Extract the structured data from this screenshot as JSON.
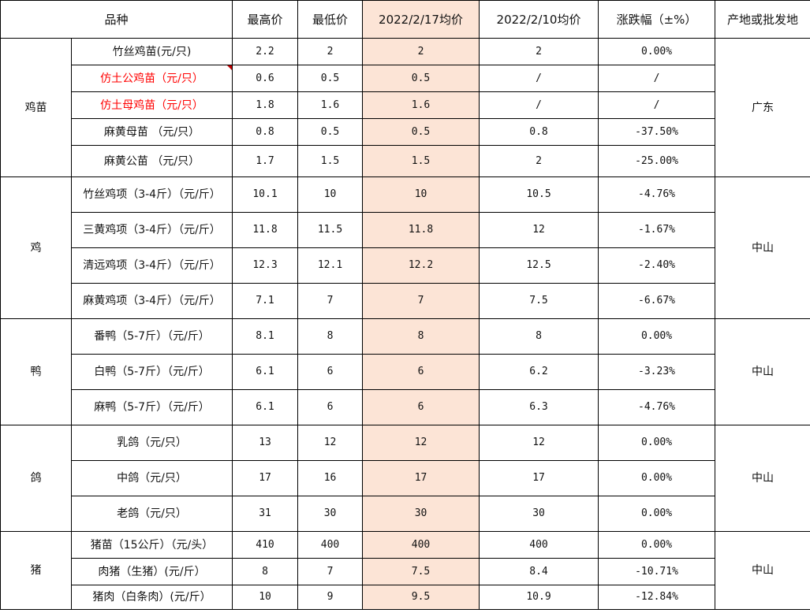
{
  "headers": {
    "variety": "品种",
    "high": "最高价",
    "low": "最低价",
    "avg_current": "2022/2/17均价",
    "avg_prev": "2022/2/10均价",
    "change": "涨跌幅（±%）",
    "origin": "产地或批发地"
  },
  "colors": {
    "highlight": "#fce4d6",
    "red_text": "#ff0000",
    "comment_marker": "#c00000"
  },
  "groups": [
    {
      "category": "鸡苗",
      "origin": "广东",
      "rows": [
        {
          "name": "竹丝鸡苗(元/只)",
          "high": "2.2",
          "low": "2",
          "avg": "2",
          "prev": "2",
          "change": "0.00%"
        },
        {
          "name": "仿土公鸡苗（元/只）",
          "high": "0.6",
          "low": "0.5",
          "avg": "0.5",
          "prev": "/",
          "change": "/",
          "red": true,
          "comment": true
        },
        {
          "name": "仿土母鸡苗（元/只）",
          "high": "1.8",
          "low": "1.6",
          "avg": "1.6",
          "prev": "/",
          "change": "/",
          "red": true
        },
        {
          "name": "麻黄母苗 （元/只）",
          "high": "0.8",
          "low": "0.5",
          "avg": "0.5",
          "prev": "0.8",
          "change": "-37.50%"
        },
        {
          "name": "麻黄公苗 （元/只）",
          "high": "1.7",
          "low": "1.5",
          "avg": "1.5",
          "prev": "2",
          "change": "-25.00%"
        }
      ]
    },
    {
      "category": "鸡",
      "origin": "中山",
      "rows": [
        {
          "name": "竹丝鸡项（3-4斤）（元/斤）",
          "high": "10.1",
          "low": "10",
          "avg": "10",
          "prev": "10.5",
          "change": "-4.76%"
        },
        {
          "name": "三黄鸡项（3-4斤）（元/斤）",
          "high": "11.8",
          "low": "11.5",
          "avg": "11.8",
          "prev": "12",
          "change": "-1.67%"
        },
        {
          "name": "清远鸡项（3-4斤）（元/斤）",
          "high": "12.3",
          "low": "12.1",
          "avg": "12.2",
          "prev": "12.5",
          "change": "-2.40%"
        },
        {
          "name": "麻黄鸡项（3-4斤）（元/斤）",
          "high": "7.1",
          "low": "7",
          "avg": "7",
          "prev": "7.5",
          "change": "-6.67%"
        }
      ]
    },
    {
      "category": "鸭",
      "origin": "中山",
      "rows": [
        {
          "name": "番鸭（5-7斤）（元/斤）",
          "high": "8.1",
          "low": "8",
          "avg": "8",
          "prev": "8",
          "change": "0.00%"
        },
        {
          "name": "白鸭（5-7斤）（元/斤）",
          "high": "6.1",
          "low": "6",
          "avg": "6",
          "prev": "6.2",
          "change": "-3.23%"
        },
        {
          "name": "麻鸭（5-7斤）（元/斤）",
          "high": "6.1",
          "low": "6",
          "avg": "6",
          "prev": "6.3",
          "change": "-4.76%"
        }
      ]
    },
    {
      "category": "鸽",
      "origin": "中山",
      "rows": [
        {
          "name": "乳鸽（元/只）",
          "high": "13",
          "low": "12",
          "avg": "12",
          "prev": "12",
          "change": "0.00%"
        },
        {
          "name": "中鸽（元/只）",
          "high": "17",
          "low": "16",
          "avg": "17",
          "prev": "17",
          "change": "0.00%"
        },
        {
          "name": "老鸽（元/只）",
          "high": "31",
          "low": "30",
          "avg": "30",
          "prev": "30",
          "change": "0.00%"
        }
      ]
    },
    {
      "category": "猪",
      "origin": "中山",
      "rows": [
        {
          "name": "猪苗（15公斤）（元/头）",
          "high": "410",
          "low": "400",
          "avg": "400",
          "prev": "400",
          "change": "0.00%"
        },
        {
          "name": "肉猪（生猪）(元/斤）",
          "high": "8",
          "low": "7",
          "avg": "7.5",
          "prev": "8.4",
          "change": "-10.71%"
        },
        {
          "name": "猪肉（白条肉）(元/斤）",
          "high": "10",
          "low": "9",
          "avg": "9.5",
          "prev": "10.9",
          "change": "-12.84%"
        }
      ]
    }
  ]
}
